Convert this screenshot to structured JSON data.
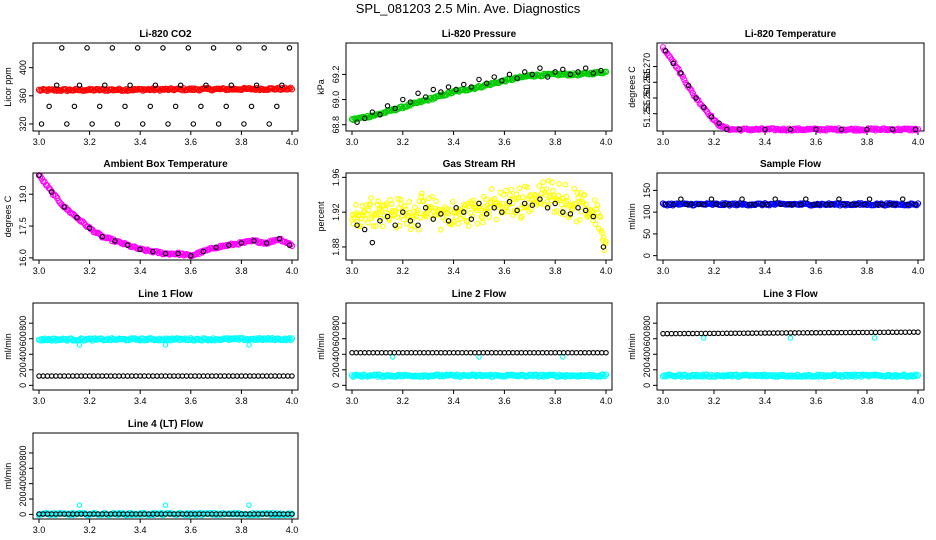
{
  "title": "SPL_081203  2.5 Min. Ave. Diagnostics",
  "colors": {
    "red": "#ff0000",
    "green": "#00cc00",
    "magenta": "#ff00ff",
    "yellow": "#ffff00",
    "blue": "#0000ff",
    "cyan": "#00ffff",
    "black": "#000000"
  },
  "chart_data": [
    {
      "type": "scatter",
      "title": "Li-820 CO2",
      "ylabel": "Licor ppm",
      "xlim": [
        3.0,
        4.0
      ],
      "ylim": [
        310,
        435
      ],
      "xticks": [
        "3.0",
        "3.2",
        "3.4",
        "3.6",
        "3.8",
        "4.0"
      ],
      "yticks": [
        "320",
        "360",
        "400"
      ],
      "series": [
        {
          "color": "red",
          "style": "dense",
          "x": [
            3.0,
            4.0
          ],
          "y": [
            368,
            370
          ]
        },
        {
          "color": "black",
          "style": "sparse",
          "x": [
            3.01,
            3.04,
            3.07,
            3.09,
            3.11,
            3.14,
            3.16,
            3.19,
            3.21,
            3.24,
            3.26,
            3.29,
            3.31,
            3.34,
            3.36,
            3.39,
            3.41,
            3.44,
            3.46,
            3.49,
            3.51,
            3.54,
            3.56,
            3.59,
            3.61,
            3.64,
            3.66,
            3.69,
            3.71,
            3.74,
            3.76,
            3.79,
            3.81,
            3.84,
            3.86,
            3.89,
            3.91,
            3.94,
            3.96,
            3.99
          ],
          "y": [
            320,
            345,
            375,
            428,
            320,
            345,
            375,
            428,
            320,
            345,
            375,
            428,
            320,
            345,
            375,
            428,
            320,
            345,
            375,
            428,
            320,
            345,
            375,
            428,
            320,
            345,
            375,
            428,
            320,
            345,
            375,
            428,
            320,
            345,
            375,
            428,
            320,
            345,
            375,
            428
          ]
        }
      ]
    },
    {
      "type": "scatter",
      "title": "Li-820 Pressure",
      "ylabel": "kPa",
      "xlim": [
        3.0,
        4.0
      ],
      "ylim": [
        68.75,
        69.45
      ],
      "xticks": [
        "3.0",
        "3.2",
        "3.4",
        "3.6",
        "3.8",
        "4.0"
      ],
      "yticks": [
        "68.8",
        "69.0",
        "69.2"
      ],
      "series": [
        {
          "color": "green",
          "style": "dense",
          "x": [
            3.0,
            3.1,
            3.2,
            3.3,
            3.4,
            3.5,
            3.6,
            3.7,
            3.8,
            3.9,
            4.0
          ],
          "y": [
            68.84,
            68.88,
            68.94,
            69.0,
            69.06,
            69.1,
            69.15,
            69.19,
            69.2,
            69.2,
            69.22
          ]
        },
        {
          "color": "black",
          "style": "sparse",
          "x": [
            3.02,
            3.05,
            3.08,
            3.11,
            3.14,
            3.17,
            3.2,
            3.23,
            3.26,
            3.29,
            3.32,
            3.35,
            3.38,
            3.41,
            3.44,
            3.47,
            3.5,
            3.53,
            3.56,
            3.59,
            3.62,
            3.65,
            3.68,
            3.71,
            3.74,
            3.77,
            3.8,
            3.83,
            3.86,
            3.89,
            3.92,
            3.95,
            3.98
          ],
          "y": [
            68.82,
            68.85,
            68.9,
            68.88,
            68.95,
            68.93,
            69.0,
            68.98,
            69.05,
            69.02,
            69.08,
            69.06,
            69.1,
            69.08,
            69.12,
            69.1,
            69.16,
            69.13,
            69.18,
            69.15,
            69.2,
            69.17,
            69.22,
            69.2,
            69.25,
            69.18,
            69.22,
            69.24,
            69.2,
            69.22,
            69.25,
            69.21,
            69.23
          ]
        }
      ]
    },
    {
      "type": "scatter",
      "title": "Li-820 Temperature",
      "ylabel": "degrees C",
      "xlim": [
        3.0,
        4.0
      ],
      "ylim": [
        51.2495,
        51.2775
      ],
      "xticks": [
        "3.0",
        "3.2",
        "3.4",
        "3.6",
        "3.8",
        "4.0"
      ],
      "yticks": [
        "51.255",
        "51.260",
        "51.265",
        "51.270"
      ],
      "series": [
        {
          "color": "magenta",
          "style": "dense",
          "x": [
            3.0,
            3.03,
            3.06,
            3.09,
            3.12,
            3.15,
            3.18,
            3.21,
            3.24,
            3.27,
            3.3,
            3.5,
            3.7,
            4.0
          ],
          "y": [
            51.276,
            51.273,
            51.269,
            51.265,
            51.261,
            51.258,
            51.255,
            51.252,
            51.2505,
            51.25,
            51.25,
            51.25,
            51.25,
            51.25
          ]
        },
        {
          "color": "black",
          "style": "sparse",
          "x": [
            3.01,
            3.04,
            3.07,
            3.1,
            3.13,
            3.16,
            3.19,
            3.22,
            3.25,
            3.3,
            3.4,
            3.5,
            3.6,
            3.7,
            3.8,
            3.9,
            3.99
          ],
          "y": [
            51.275,
            51.271,
            51.268,
            51.264,
            51.26,
            51.257,
            51.254,
            51.252,
            51.25,
            51.25,
            51.25,
            51.25,
            51.25,
            51.25,
            51.25,
            51.25,
            51.25
          ]
        }
      ]
    },
    {
      "type": "scatter",
      "title": "Ambient Box Temperature",
      "ylabel": "degrees C",
      "xlim": [
        3.0,
        4.0
      ],
      "ylim": [
        15.9,
        20.0
      ],
      "xticks": [
        "3.0",
        "3.2",
        "3.4",
        "3.6",
        "3.8",
        "4.0"
      ],
      "yticks": [
        "16.0",
        "17.5",
        "19.0"
      ],
      "series": [
        {
          "color": "magenta",
          "style": "dense",
          "x": [
            3.0,
            3.05,
            3.1,
            3.15,
            3.2,
            3.25,
            3.3,
            3.35,
            3.4,
            3.45,
            3.5,
            3.55,
            3.6,
            3.65,
            3.7,
            3.75,
            3.8,
            3.85,
            3.9,
            3.95,
            4.0
          ],
          "y": [
            19.9,
            19.1,
            18.4,
            17.9,
            17.4,
            17.0,
            16.8,
            16.6,
            16.4,
            16.3,
            16.2,
            16.2,
            16.1,
            16.3,
            16.5,
            16.6,
            16.7,
            16.8,
            16.7,
            16.9,
            16.6
          ]
        },
        {
          "color": "black",
          "style": "sparse",
          "x": [
            3.0,
            3.05,
            3.1,
            3.15,
            3.2,
            3.25,
            3.3,
            3.35,
            3.4,
            3.45,
            3.5,
            3.55,
            3.6,
            3.65,
            3.7,
            3.75,
            3.8,
            3.85,
            3.9,
            3.95,
            3.99
          ],
          "y": [
            19.9,
            19.1,
            18.4,
            17.9,
            17.4,
            17.0,
            16.8,
            16.6,
            16.4,
            16.3,
            16.2,
            16.2,
            16.1,
            16.3,
            16.5,
            16.6,
            16.7,
            16.8,
            16.7,
            16.9,
            16.6
          ]
        }
      ]
    },
    {
      "type": "scatter",
      "title": "Gas Stream RH",
      "ylabel": "percent",
      "xlim": [
        3.0,
        4.0
      ],
      "ylim": [
        1.865,
        1.965
      ],
      "xticks": [
        "3.0",
        "3.2",
        "3.4",
        "3.6",
        "3.8",
        "4.0"
      ],
      "yticks": [
        "1.88",
        "1.92",
        "1.96"
      ],
      "series": [
        {
          "color": "yellow",
          "style": "noisy",
          "x": [
            3.0,
            3.1,
            3.2,
            3.3,
            3.4,
            3.5,
            3.6,
            3.7,
            3.8,
            3.9,
            3.97,
            4.0
          ],
          "y": [
            1.915,
            1.925,
            1.918,
            1.922,
            1.915,
            1.925,
            1.928,
            1.935,
            1.94,
            1.925,
            1.92,
            1.875
          ]
        },
        {
          "color": "black",
          "style": "sparse",
          "x": [
            3.02,
            3.05,
            3.08,
            3.11,
            3.14,
            3.17,
            3.2,
            3.23,
            3.26,
            3.29,
            3.32,
            3.35,
            3.38,
            3.41,
            3.44,
            3.47,
            3.5,
            3.53,
            3.56,
            3.59,
            3.62,
            3.65,
            3.68,
            3.71,
            3.74,
            3.77,
            3.8,
            3.83,
            3.86,
            3.89,
            3.92,
            3.95,
            3.99
          ],
          "y": [
            1.905,
            1.9,
            1.885,
            1.91,
            1.915,
            1.905,
            1.92,
            1.91,
            1.905,
            1.925,
            1.912,
            1.918,
            1.91,
            1.925,
            1.92,
            1.912,
            1.93,
            1.918,
            1.925,
            1.92,
            1.932,
            1.922,
            1.93,
            1.928,
            1.935,
            1.925,
            1.93,
            1.92,
            1.918,
            1.925,
            1.922,
            1.915,
            1.88
          ]
        }
      ]
    },
    {
      "type": "scatter",
      "title": "Sample Flow",
      "ylabel": "ml/min",
      "xlim": [
        3.0,
        4.0
      ],
      "ylim": [
        -10,
        190
      ],
      "xticks": [
        "3.0",
        "3.2",
        "3.4",
        "3.6",
        "3.8",
        "4.0"
      ],
      "yticks": [
        "0",
        "50",
        "100",
        "150"
      ],
      "series": [
        {
          "color": "blue",
          "style": "dense",
          "x": [
            3.0,
            4.0
          ],
          "y": [
            118,
            118
          ]
        },
        {
          "color": "black",
          "style": "sparse",
          "x": [
            3.01,
            3.04,
            3.07,
            3.09,
            3.11,
            3.14,
            3.16,
            3.19,
            3.21,
            3.24,
            3.26,
            3.29,
            3.31,
            3.34,
            3.36,
            3.39,
            3.41,
            3.44,
            3.46,
            3.49,
            3.51,
            3.54,
            3.56,
            3.59,
            3.61,
            3.64,
            3.66,
            3.69,
            3.71,
            3.74,
            3.76,
            3.79,
            3.81,
            3.84,
            3.86,
            3.89,
            3.91,
            3.94,
            3.96,
            3.99
          ],
          "y": [
            118,
            118,
            130,
            118,
            118,
            118,
            118,
            130,
            118,
            118,
            118,
            118,
            130,
            118,
            118,
            118,
            118,
            130,
            118,
            118,
            118,
            118,
            130,
            118,
            118,
            118,
            118,
            130,
            118,
            118,
            118,
            118,
            130,
            118,
            118,
            118,
            118,
            130,
            118,
            118
          ]
        }
      ]
    },
    {
      "type": "scatter",
      "title": "Line 1 Flow",
      "ylabel": "ml/min",
      "xlim": [
        3.0,
        4.0
      ],
      "ylim": [
        -60,
        1060
      ],
      "xticks": [
        "3.0",
        "3.2",
        "3.4",
        "3.6",
        "3.8",
        "4.0"
      ],
      "yticks": [
        "0",
        "200",
        "400",
        "600",
        "800"
      ],
      "series": [
        {
          "color": "cyan",
          "style": "dense",
          "x": [
            3.0,
            4.0
          ],
          "y": [
            590,
            595
          ]
        },
        {
          "color": "cyan",
          "style": "sparse",
          "x": [
            3.16,
            3.5,
            3.83
          ],
          "y": [
            520,
            520,
            520
          ]
        },
        {
          "color": "black",
          "style": "row",
          "x": [
            3.0,
            4.0
          ],
          "y": [
            120,
            120
          ]
        }
      ]
    },
    {
      "type": "scatter",
      "title": "Line 2 Flow",
      "ylabel": "ml/min",
      "xlim": [
        3.0,
        4.0
      ],
      "ylim": [
        -60,
        1060
      ],
      "xticks": [
        "3.0",
        "3.2",
        "3.4",
        "3.6",
        "3.8",
        "4.0"
      ],
      "yticks": [
        "0",
        "200",
        "400",
        "600",
        "800"
      ],
      "series": [
        {
          "color": "cyan",
          "style": "dense",
          "x": [
            3.0,
            4.0
          ],
          "y": [
            125,
            125
          ]
        },
        {
          "color": "cyan",
          "style": "sparse",
          "x": [
            3.16,
            3.5,
            3.83
          ],
          "y": [
            365,
            365,
            365
          ]
        },
        {
          "color": "black",
          "style": "row",
          "x": [
            3.0,
            4.0
          ],
          "y": [
            420,
            420
          ]
        }
      ]
    },
    {
      "type": "scatter",
      "title": "Line 3 Flow",
      "ylabel": "ml/min",
      "xlim": [
        3.0,
        4.0
      ],
      "ylim": [
        -60,
        1060
      ],
      "xticks": [
        "3.0",
        "3.2",
        "3.4",
        "3.6",
        "3.8",
        "4.0"
      ],
      "yticks": [
        "0",
        "200",
        "400",
        "600",
        "800"
      ],
      "series": [
        {
          "color": "cyan",
          "style": "dense",
          "x": [
            3.0,
            4.0
          ],
          "y": [
            125,
            125
          ]
        },
        {
          "color": "cyan",
          "style": "sparse",
          "x": [
            3.16,
            3.5,
            3.83
          ],
          "y": [
            610,
            610,
            610
          ]
        },
        {
          "color": "black",
          "style": "row",
          "x": [
            3.0,
            4.0
          ],
          "y": [
            665,
            685
          ]
        }
      ]
    },
    {
      "type": "scatter",
      "title": "Line 4 (LT) Flow",
      "ylabel": "ml/min",
      "xlim": [
        3.0,
        4.0
      ],
      "ylim": [
        -60,
        1060
      ],
      "xticks": [
        "3.0",
        "3.2",
        "3.4",
        "3.6",
        "3.8",
        "4.0"
      ],
      "yticks": [
        "0",
        "200",
        "400",
        "600",
        "800"
      ],
      "series": [
        {
          "color": "cyan",
          "style": "dense",
          "x": [
            3.0,
            4.0
          ],
          "y": [
            5,
            5
          ]
        },
        {
          "color": "cyan",
          "style": "sparse",
          "x": [
            3.16,
            3.5,
            3.83
          ],
          "y": [
            120,
            120,
            120
          ]
        },
        {
          "color": "black",
          "style": "row",
          "x": [
            3.0,
            4.0
          ],
          "y": [
            5,
            5
          ]
        }
      ]
    }
  ]
}
